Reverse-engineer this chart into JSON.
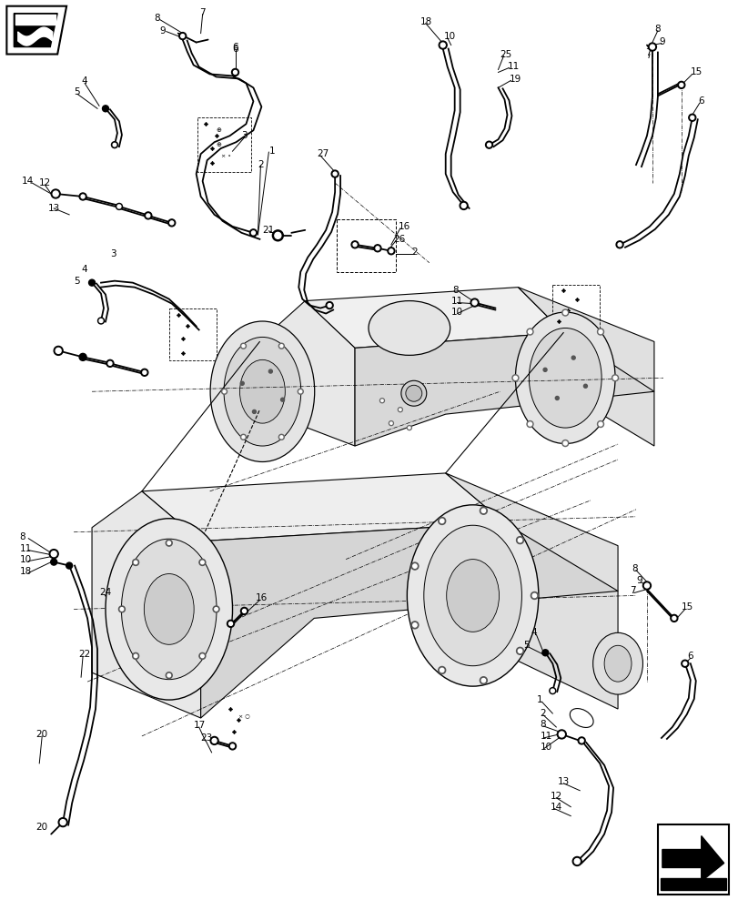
{
  "bg_color": "#ffffff",
  "figsize": [
    8.12,
    10.0
  ],
  "dpi": 100
}
